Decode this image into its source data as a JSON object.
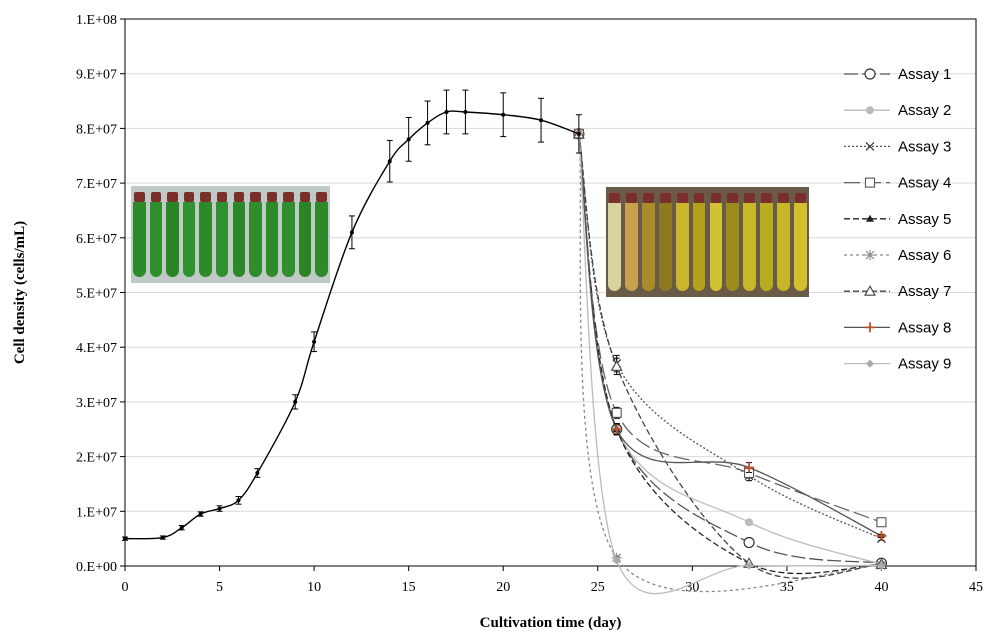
{
  "chart_data": {
    "type": "line",
    "xlabel": "Cultivation  time (day)",
    "ylabel": "Cell density (cells/mL)",
    "xlim": [
      0,
      45
    ],
    "ylim": [
      0,
      100000000
    ],
    "x_ticks": [
      "0",
      "5",
      "10",
      "15",
      "20",
      "25",
      "30",
      "35",
      "40",
      "45"
    ],
    "y_ticks": [
      "0.E+00",
      "1.E+07",
      "2.E+07",
      "3.E+07",
      "4.E+07",
      "5.E+07",
      "6.E+07",
      "7.E+07",
      "8.E+07",
      "9.E+07",
      "1.E+08"
    ],
    "grid": "horizontal",
    "legend_position": "right",
    "growth_curve": {
      "color": "#000000",
      "points": [
        {
          "x": 0,
          "y": 5000000,
          "err": 300000
        },
        {
          "x": 2,
          "y": 5200000,
          "err": 300000
        },
        {
          "x": 3,
          "y": 7000000,
          "err": 400000
        },
        {
          "x": 4,
          "y": 9500000,
          "err": 400000
        },
        {
          "x": 5,
          "y": 10500000,
          "err": 500000
        },
        {
          "x": 6,
          "y": 12000000,
          "err": 700000
        },
        {
          "x": 7,
          "y": 17000000,
          "err": 800000
        },
        {
          "x": 9,
          "y": 30000000,
          "err": 1300000
        },
        {
          "x": 10,
          "y": 41000000,
          "err": 1800000
        },
        {
          "x": 12,
          "y": 61000000,
          "err": 3000000
        },
        {
          "x": 14,
          "y": 74000000,
          "err": 3800000
        },
        {
          "x": 15,
          "y": 78000000,
          "err": 4000000
        },
        {
          "x": 16,
          "y": 81000000,
          "err": 4000000
        },
        {
          "x": 17,
          "y": 83000000,
          "err": 4000000
        },
        {
          "x": 18,
          "y": 83000000,
          "err": 4000000
        },
        {
          "x": 20,
          "y": 82500000,
          "err": 4000000
        },
        {
          "x": 22,
          "y": 81500000,
          "err": 4000000
        },
        {
          "x": 24,
          "y": 79000000,
          "err": 3500000
        }
      ]
    },
    "series": [
      {
        "name": "Assay 1",
        "color": "#555555",
        "dash": "14,4",
        "marker": "circle-open",
        "x": [
          24,
          26,
          33,
          40
        ],
        "y": [
          79000000,
          25000000,
          4300000,
          500000
        ],
        "err": [
          0,
          1000000,
          400000,
          200000
        ]
      },
      {
        "name": "Assay 2",
        "color": "#bbbbbb",
        "dash": "",
        "marker": "circle-filled",
        "x": [
          24,
          26,
          33,
          40
        ],
        "y": [
          79000000,
          25000000,
          8000000,
          300000
        ],
        "err": [
          0,
          1000000,
          0,
          0
        ]
      },
      {
        "name": "Assay 3",
        "color": "#555555",
        "dash": "2,2",
        "marker": "x",
        "x": [
          24,
          26,
          33,
          40
        ],
        "y": [
          79000000,
          37000000,
          16500000,
          5000000
        ],
        "err": [
          0,
          1500000,
          900000,
          300000
        ]
      },
      {
        "name": "Assay 4",
        "color": "#666666",
        "dash": "16,5",
        "marker": "square-open",
        "x": [
          24,
          26,
          33,
          40
        ],
        "y": [
          79000000,
          28000000,
          17000000,
          8000000
        ],
        "err": [
          0,
          1000000,
          900000,
          300000
        ]
      },
      {
        "name": "Assay 5",
        "color": "#222222",
        "dash": "6,3",
        "marker": "triangle-filled",
        "x": [
          24,
          26,
          33,
          40
        ],
        "y": [
          79000000,
          25000000,
          500000,
          300000
        ],
        "err": [
          0,
          1000000,
          0,
          0
        ]
      },
      {
        "name": "Assay 6",
        "color": "#888888",
        "dash": "3,3",
        "marker": "star",
        "x": [
          24,
          26,
          40
        ],
        "y": [
          79000000,
          1500000,
          100000
        ],
        "err": [
          0,
          300000,
          0
        ]
      },
      {
        "name": "Assay 7",
        "color": "#444444",
        "dash": "6,3",
        "marker": "triangle-open",
        "x": [
          24,
          26,
          33,
          40
        ],
        "y": [
          79000000,
          36500000,
          500000,
          300000
        ],
        "err": [
          0,
          1500000,
          0,
          0
        ]
      },
      {
        "name": "Assay 8",
        "color": "#555555",
        "dash": "",
        "marker": "plus-red",
        "x": [
          24,
          26,
          33,
          40
        ],
        "y": [
          79000000,
          25000000,
          18000000,
          5500000
        ],
        "err": [
          0,
          1000000,
          900000,
          300000
        ]
      },
      {
        "name": "Assay 9",
        "color": "#bbbbbb",
        "dash": "",
        "marker": "diamond",
        "x": [
          24,
          26,
          33,
          40
        ],
        "y": [
          79000000,
          1000000,
          100000,
          100000
        ],
        "err": [
          0,
          0,
          0,
          0
        ]
      }
    ]
  }
}
